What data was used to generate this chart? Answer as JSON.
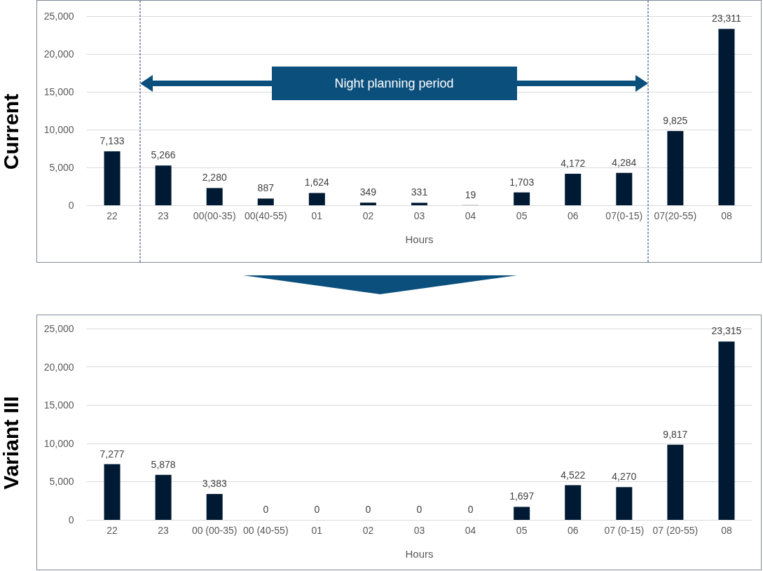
{
  "chart_data": [
    {
      "type": "bar",
      "title": "Current",
      "xlabel": "Hours",
      "categories": [
        "22",
        "23",
        "00(00-35)",
        "00(40-55)",
        "01",
        "02",
        "03",
        "04",
        "05",
        "06",
        "07(0-15)",
        "07(20-55)",
        "08"
      ],
      "values": [
        7133,
        5266,
        2280,
        887,
        1624,
        349,
        331,
        19,
        1703,
        4172,
        4284,
        9825,
        23311
      ],
      "value_labels": [
        "7,133",
        "5,266",
        "2,280",
        "887",
        "1,624",
        "349",
        "331",
        "19",
        "1,703",
        "4,172",
        "4,284",
        "9,825",
        "23,311"
      ],
      "color": "#001a33",
      "ylim": [
        0,
        25000
      ],
      "yticks": [
        {
          "value": 0,
          "label": "0"
        },
        {
          "value": 5000,
          "label": "5,000"
        },
        {
          "value": 10000,
          "label": "10,000"
        },
        {
          "value": 15000,
          "label": "15,000"
        },
        {
          "value": 20000,
          "label": "20,000"
        },
        {
          "value": 25000,
          "label": "25,000"
        }
      ],
      "grid": "y",
      "annotations": [
        "Night planning period"
      ]
    },
    {
      "type": "bar",
      "title": "Variant III",
      "xlabel": "Hours",
      "categories": [
        "22",
        "23",
        "00 (00-35)",
        "00 (40-55)",
        "01",
        "02",
        "03",
        "04",
        "05",
        "06",
        "07 (0-15)",
        "07 (20-55)",
        "08"
      ],
      "values": [
        7277,
        5878,
        3383,
        0,
        0,
        0,
        0,
        0,
        1697,
        4522,
        4270,
        9817,
        23315
      ],
      "value_labels": [
        "7,277",
        "5,878",
        "3,383",
        "0",
        "0",
        "0",
        "0",
        "0",
        "1,697",
        "4,522",
        "4,270",
        "9,817",
        "23,315"
      ],
      "color": "#001a33",
      "ylim": [
        0,
        25000
      ],
      "yticks": [
        {
          "value": 0,
          "label": "0"
        },
        {
          "value": 5000,
          "label": "5,000"
        },
        {
          "value": 10000,
          "label": "10,000"
        },
        {
          "value": 15000,
          "label": "15,000"
        },
        {
          "value": 20000,
          "label": "20,000"
        },
        {
          "value": 25000,
          "label": "25,000"
        }
      ],
      "grid": "y"
    }
  ]
}
